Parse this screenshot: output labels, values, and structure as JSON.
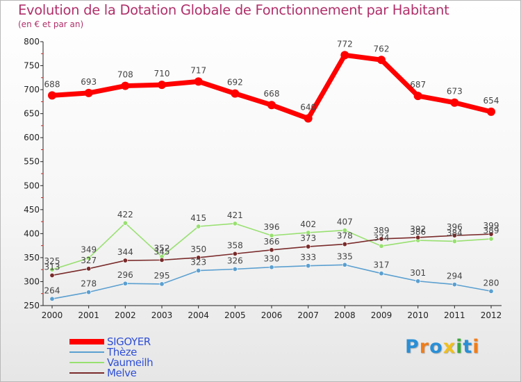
{
  "header": {
    "title": "Evolution de la Dotation Globale de Fonctionnement par Habitant",
    "subtitle": "(en € et par an)"
  },
  "logo": {
    "letters": [
      "P",
      "r",
      "o",
      "x",
      "i",
      "t",
      "i"
    ],
    "colors": [
      "#2a8fd6",
      "#f07d1a",
      "#2a8fd6",
      "#f0c020",
      "#3aaa3a",
      "#2a8fd6",
      "#f07d1a"
    ]
  },
  "chart_data": {
    "type": "line",
    "title": "Evolution de la Dotation Globale de Fonctionnement par Habitant",
    "subtitle": "(en € et par an)",
    "xlabel": "",
    "ylabel": "",
    "x": [
      "2000",
      "2001",
      "2002",
      "2003",
      "2004",
      "2005",
      "2006",
      "2007",
      "2008",
      "2009",
      "2010",
      "2011",
      "2012"
    ],
    "ylim": [
      250,
      800
    ],
    "yticks": [
      250,
      300,
      350,
      400,
      450,
      500,
      550,
      600,
      650,
      700,
      750,
      800
    ],
    "grid": false,
    "legend_position": "bottom-left",
    "series": [
      {
        "name": "SIGOYER",
        "color": "#ff0000",
        "values": [
          688,
          693,
          708,
          710,
          717,
          692,
          668,
          640,
          772,
          762,
          687,
          673,
          654
        ]
      },
      {
        "name": "Thèze",
        "color": "#5a9fd0",
        "values": [
          264,
          278,
          296,
          295,
          323,
          326,
          330,
          333,
          335,
          317,
          301,
          294,
          280
        ]
      },
      {
        "name": "Vaumeilh",
        "color": "#98e070",
        "values": [
          325,
          349,
          422,
          352,
          415,
          421,
          396,
          402,
          407,
          374,
          386,
          384,
          389
        ]
      },
      {
        "name": "Melve",
        "color": "#7a2a2a",
        "values": [
          313,
          327,
          344,
          345,
          350,
          358,
          366,
          373,
          378,
          389,
          392,
          396,
          399
        ]
      }
    ]
  }
}
